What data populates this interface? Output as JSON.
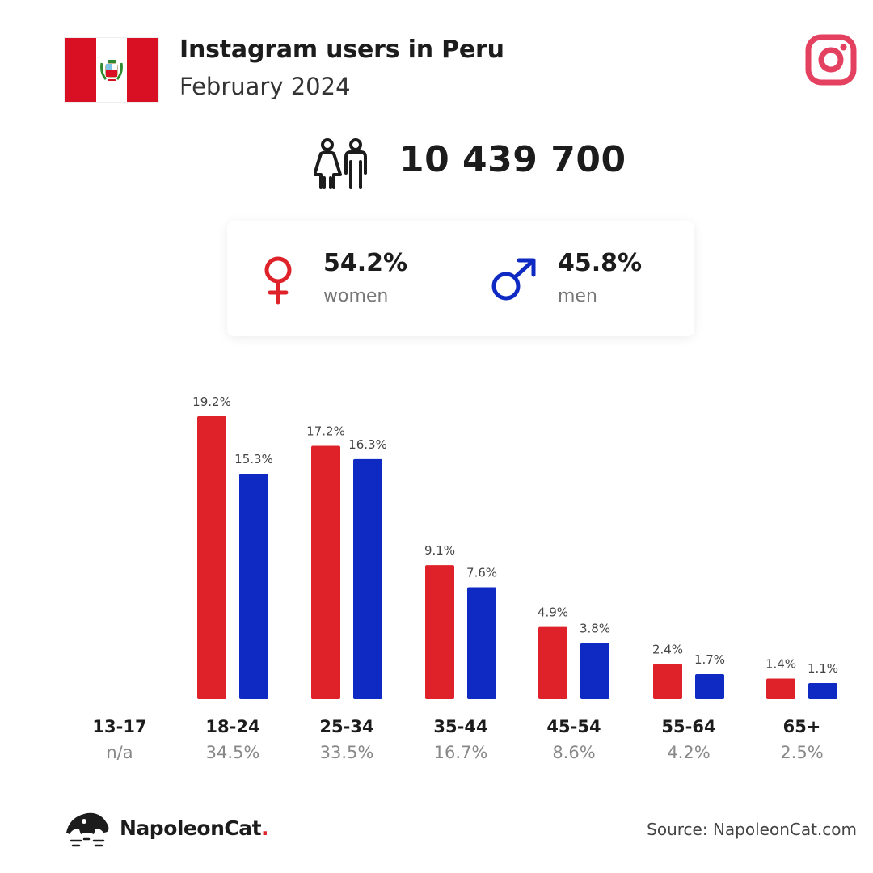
{
  "header": {
    "title": "Instagram users in Peru",
    "subtitle": "February 2024"
  },
  "colors": {
    "women": "#df2129",
    "men": "#0f2ac3",
    "flag_red": "#d91023",
    "instagram": "#e4405f"
  },
  "icons": {
    "flag": "peru-flag-icon",
    "platform": "instagram-icon",
    "users": "people-icon",
    "female": "female-symbol-icon",
    "male": "male-symbol-icon",
    "brand": "napoleoncat-logo-icon"
  },
  "totals": {
    "users": "10 439 700"
  },
  "gender": {
    "women_pct": "54.2%",
    "women_label": "women",
    "men_pct": "45.8%",
    "men_label": "men"
  },
  "chart_data": {
    "type": "bar",
    "categories": [
      "13-17",
      "18-24",
      "25-34",
      "35-44",
      "45-54",
      "55-64",
      "65+"
    ],
    "category_totals": [
      "n/a",
      "34.5%",
      "33.5%",
      "16.7%",
      "8.6%",
      "4.2%",
      "2.5%"
    ],
    "series": [
      {
        "values": [
          null,
          19.2,
          17.2,
          9.1,
          4.9,
          2.4,
          1.4
        ],
        "color": "#df2129"
      },
      {
        "values": [
          null,
          15.3,
          16.3,
          7.6,
          3.8,
          1.7,
          1.1
        ],
        "color": "#0f2ac3"
      }
    ],
    "value_suffix": "%",
    "ylim": [
      0,
      19.2
    ],
    "grid": false
  },
  "footer": {
    "brand_name": "NapoleonCat",
    "brand_dot": ".",
    "source": "Source: NapoleonCat.com"
  }
}
